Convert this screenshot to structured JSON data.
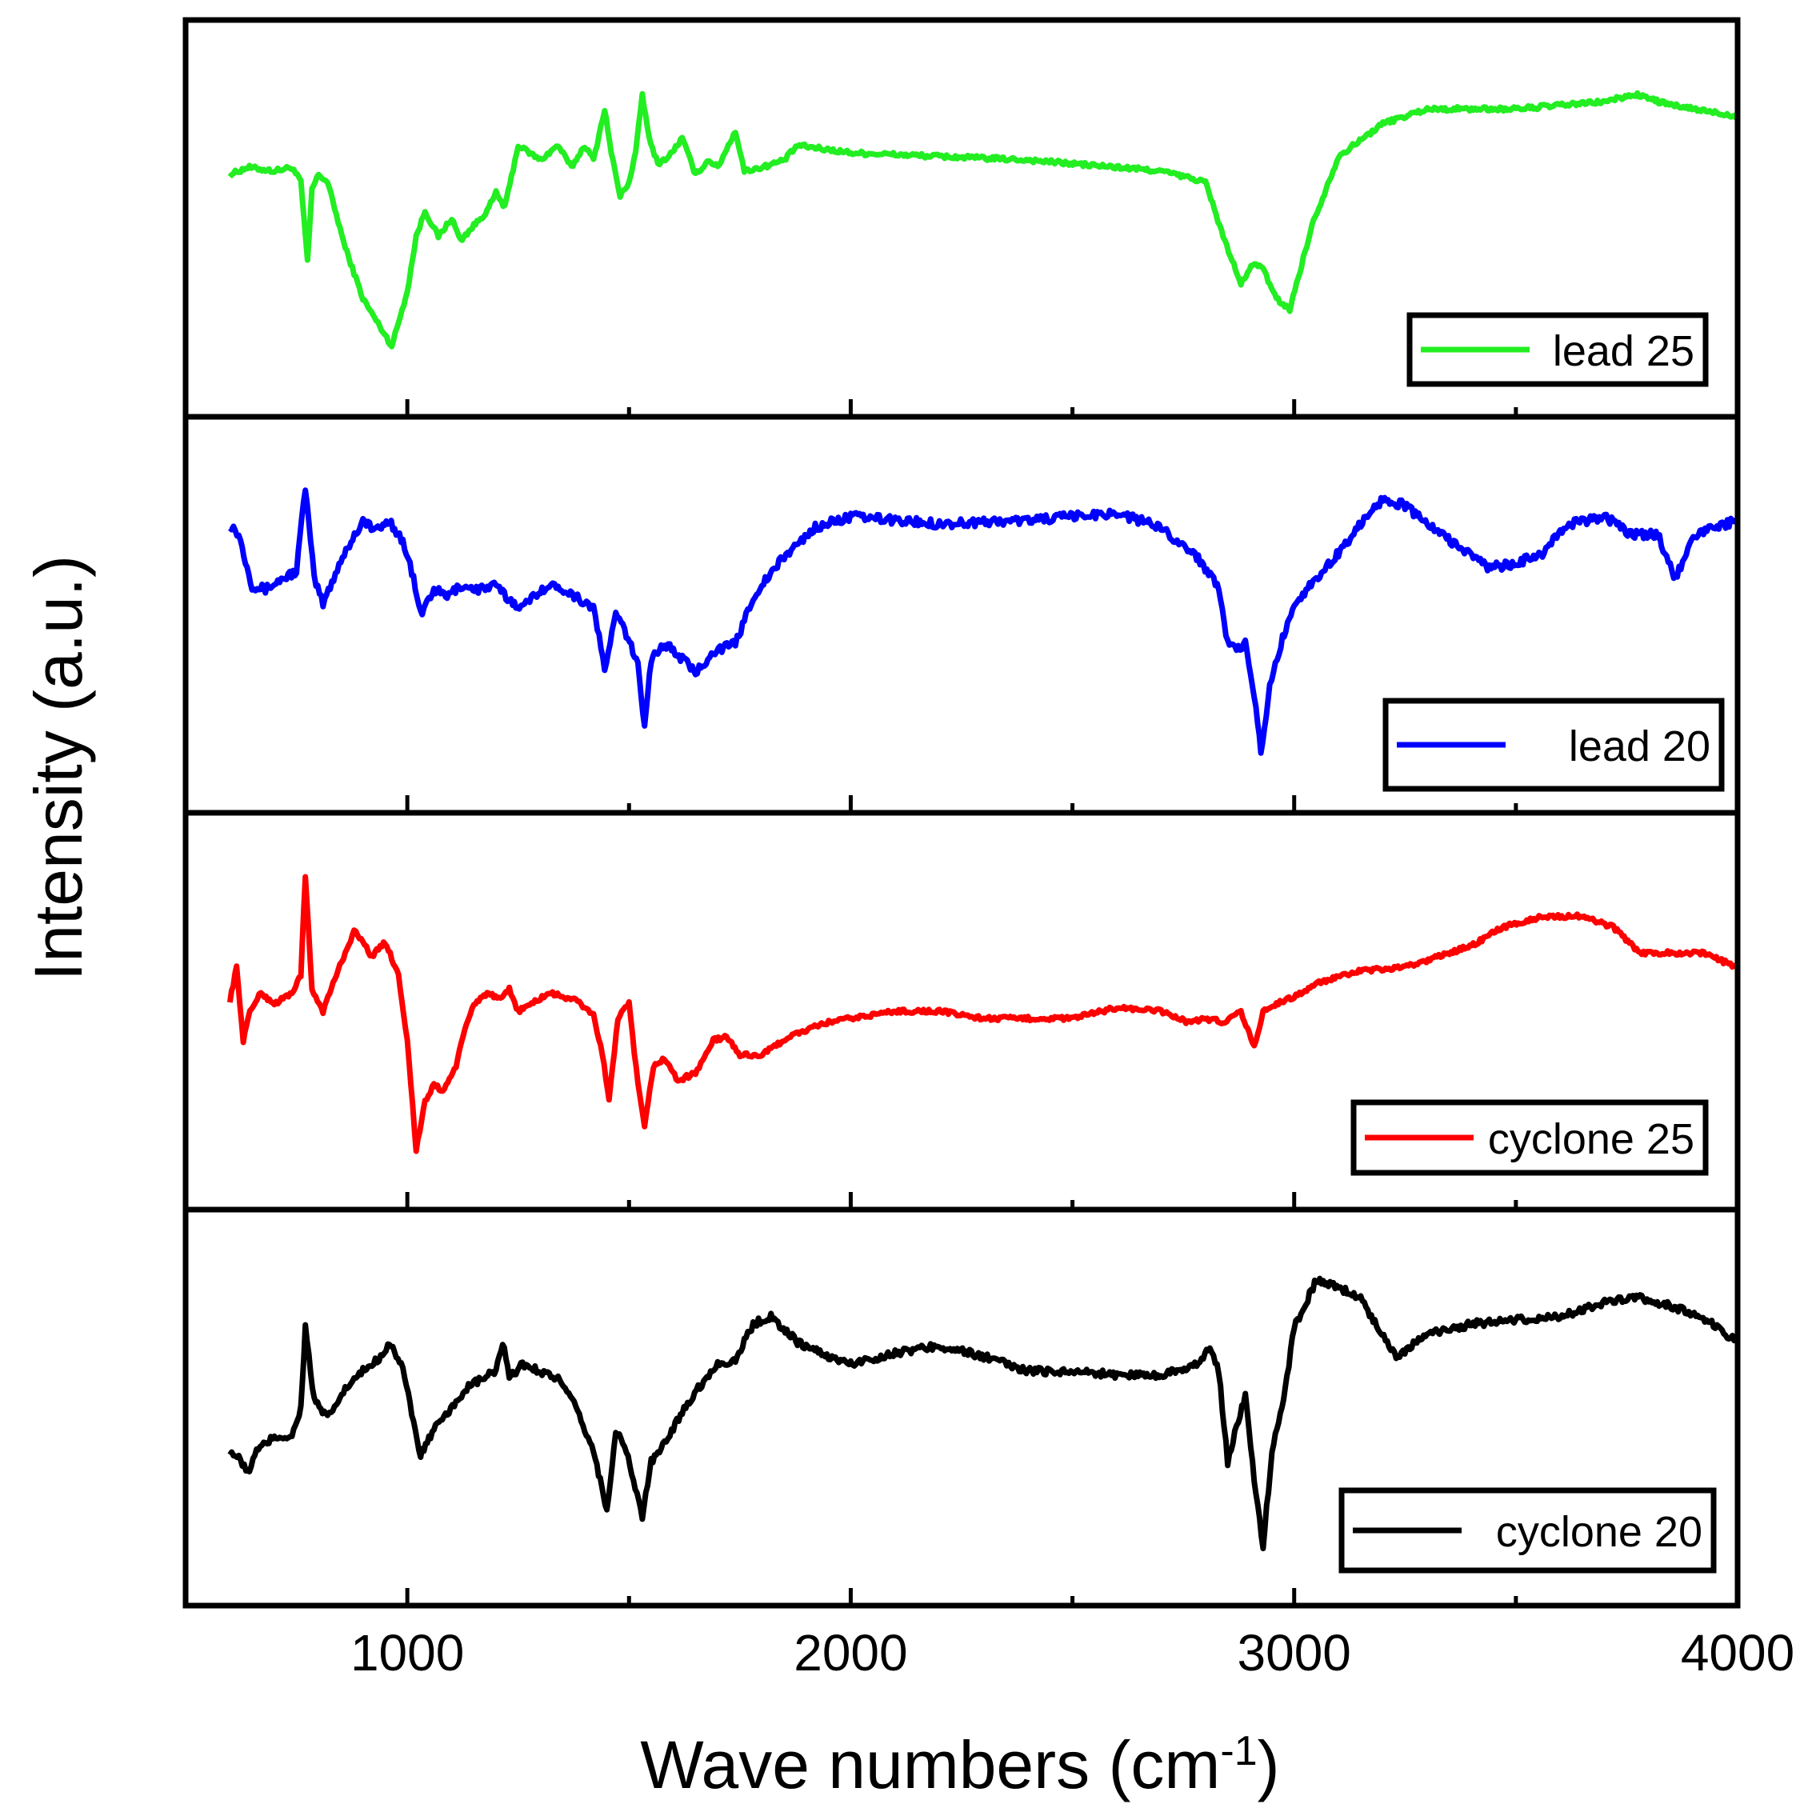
{
  "chart_data": {
    "type": "line",
    "layout": "stacked-panels",
    "xlabel": "Wave numbers (cm",
    "xlabel_superscript": "-1",
    "xlabel_suffix": ")",
    "ylabel": "Intensity (a.u.)",
    "xlim": [
      500,
      4000
    ],
    "xticks": [
      1000,
      2000,
      3000,
      4000
    ],
    "minor_ticks": [
      1500,
      2500,
      3500
    ],
    "ylim": [
      0,
      1
    ],
    "panels": [
      {
        "name": "lead 25",
        "color": "#22ee22",
        "noise": 0.006,
        "points": [
          [
            600,
            0.62
          ],
          [
            640,
            0.64
          ],
          [
            700,
            0.63
          ],
          [
            740,
            0.64
          ],
          [
            760,
            0.6
          ],
          [
            775,
            0.38
          ],
          [
            785,
            0.58
          ],
          [
            800,
            0.62
          ],
          [
            820,
            0.6
          ],
          [
            860,
            0.42
          ],
          [
            900,
            0.28
          ],
          [
            930,
            0.22
          ],
          [
            965,
            0.15
          ],
          [
            1000,
            0.3
          ],
          [
            1020,
            0.45
          ],
          [
            1040,
            0.52
          ],
          [
            1070,
            0.45
          ],
          [
            1100,
            0.5
          ],
          [
            1120,
            0.44
          ],
          [
            1150,
            0.48
          ],
          [
            1180,
            0.52
          ],
          [
            1200,
            0.57
          ],
          [
            1220,
            0.53
          ],
          [
            1250,
            0.7
          ],
          [
            1275,
            0.68
          ],
          [
            1300,
            0.66
          ],
          [
            1340,
            0.7
          ],
          [
            1370,
            0.64
          ],
          [
            1400,
            0.7
          ],
          [
            1420,
            0.66
          ],
          [
            1445,
            0.8
          ],
          [
            1460,
            0.68
          ],
          [
            1480,
            0.56
          ],
          [
            1500,
            0.6
          ],
          [
            1515,
            0.68
          ],
          [
            1530,
            0.84
          ],
          [
            1545,
            0.72
          ],
          [
            1565,
            0.65
          ],
          [
            1590,
            0.67
          ],
          [
            1620,
            0.72
          ],
          [
            1650,
            0.62
          ],
          [
            1680,
            0.66
          ],
          [
            1700,
            0.64
          ],
          [
            1740,
            0.74
          ],
          [
            1760,
            0.63
          ],
          [
            1800,
            0.64
          ],
          [
            1850,
            0.66
          ],
          [
            1880,
            0.7
          ],
          [
            2000,
            0.68
          ],
          [
            2400,
            0.66
          ],
          [
            2700,
            0.63
          ],
          [
            2800,
            0.6
          ],
          [
            2840,
            0.45
          ],
          [
            2880,
            0.32
          ],
          [
            2910,
            0.38
          ],
          [
            2930,
            0.36
          ],
          [
            2960,
            0.28
          ],
          [
            2990,
            0.25
          ],
          [
            3040,
            0.48
          ],
          [
            3100,
            0.67
          ],
          [
            3200,
            0.76
          ],
          [
            3300,
            0.8
          ],
          [
            3500,
            0.8
          ],
          [
            3700,
            0.82
          ],
          [
            3770,
            0.84
          ],
          [
            3850,
            0.81
          ],
          [
            4000,
            0.78
          ]
        ]
      },
      {
        "name": "lead 20",
        "color": "#0000ff",
        "noise": 0.012,
        "points": [
          [
            600,
            0.75
          ],
          [
            620,
            0.72
          ],
          [
            650,
            0.58
          ],
          [
            680,
            0.57
          ],
          [
            720,
            0.6
          ],
          [
            750,
            0.62
          ],
          [
            770,
            0.85
          ],
          [
            790,
            0.6
          ],
          [
            810,
            0.53
          ],
          [
            850,
            0.65
          ],
          [
            900,
            0.76
          ],
          [
            930,
            0.73
          ],
          [
            960,
            0.76
          ],
          [
            990,
            0.7
          ],
          [
            1010,
            0.62
          ],
          [
            1030,
            0.5
          ],
          [
            1060,
            0.57
          ],
          [
            1090,
            0.55
          ],
          [
            1120,
            0.58
          ],
          [
            1160,
            0.57
          ],
          [
            1200,
            0.58
          ],
          [
            1230,
            0.54
          ],
          [
            1260,
            0.52
          ],
          [
            1300,
            0.57
          ],
          [
            1340,
            0.58
          ],
          [
            1380,
            0.55
          ],
          [
            1420,
            0.52
          ],
          [
            1445,
            0.35
          ],
          [
            1470,
            0.5
          ],
          [
            1490,
            0.46
          ],
          [
            1520,
            0.36
          ],
          [
            1535,
            0.2
          ],
          [
            1550,
            0.38
          ],
          [
            1580,
            0.42
          ],
          [
            1620,
            0.38
          ],
          [
            1650,
            0.34
          ],
          [
            1690,
            0.4
          ],
          [
            1740,
            0.42
          ],
          [
            1780,
            0.55
          ],
          [
            1850,
            0.66
          ],
          [
            1920,
            0.74
          ],
          [
            2000,
            0.77
          ],
          [
            2100,
            0.76
          ],
          [
            2200,
            0.75
          ],
          [
            2400,
            0.76
          ],
          [
            2600,
            0.78
          ],
          [
            2700,
            0.74
          ],
          [
            2780,
            0.66
          ],
          [
            2830,
            0.58
          ],
          [
            2850,
            0.42
          ],
          [
            2870,
            0.4
          ],
          [
            2890,
            0.42
          ],
          [
            2910,
            0.28
          ],
          [
            2925,
            0.12
          ],
          [
            2945,
            0.3
          ],
          [
            2970,
            0.42
          ],
          [
            3000,
            0.53
          ],
          [
            3050,
            0.6
          ],
          [
            3100,
            0.67
          ],
          [
            3150,
            0.75
          ],
          [
            3200,
            0.82
          ],
          [
            3250,
            0.8
          ],
          [
            3300,
            0.75
          ],
          [
            3380,
            0.68
          ],
          [
            3440,
            0.63
          ],
          [
            3500,
            0.64
          ],
          [
            3560,
            0.67
          ],
          [
            3620,
            0.75
          ],
          [
            3700,
            0.77
          ],
          [
            3760,
            0.72
          ],
          [
            3820,
            0.72
          ],
          [
            3860,
            0.6
          ],
          [
            3900,
            0.72
          ],
          [
            3950,
            0.74
          ],
          [
            4000,
            0.76
          ]
        ]
      },
      {
        "name": "cyclone 25",
        "color": "#ff0000",
        "noise": 0.006,
        "points": [
          [
            600,
            0.53
          ],
          [
            615,
            0.62
          ],
          [
            630,
            0.42
          ],
          [
            645,
            0.5
          ],
          [
            670,
            0.55
          ],
          [
            700,
            0.52
          ],
          [
            740,
            0.55
          ],
          [
            760,
            0.6
          ],
          [
            770,
            0.87
          ],
          [
            785,
            0.56
          ],
          [
            810,
            0.5
          ],
          [
            840,
            0.6
          ],
          [
            880,
            0.72
          ],
          [
            900,
            0.69
          ],
          [
            920,
            0.65
          ],
          [
            950,
            0.69
          ],
          [
            980,
            0.6
          ],
          [
            1000,
            0.42
          ],
          [
            1020,
            0.12
          ],
          [
            1040,
            0.25
          ],
          [
            1060,
            0.3
          ],
          [
            1080,
            0.28
          ],
          [
            1110,
            0.35
          ],
          [
            1130,
            0.45
          ],
          [
            1150,
            0.52
          ],
          [
            1180,
            0.55
          ],
          [
            1210,
            0.53
          ],
          [
            1230,
            0.56
          ],
          [
            1250,
            0.5
          ],
          [
            1280,
            0.52
          ],
          [
            1320,
            0.55
          ],
          [
            1350,
            0.54
          ],
          [
            1380,
            0.53
          ],
          [
            1420,
            0.49
          ],
          [
            1440,
            0.38
          ],
          [
            1455,
            0.26
          ],
          [
            1475,
            0.48
          ],
          [
            1500,
            0.52
          ],
          [
            1520,
            0.3
          ],
          [
            1535,
            0.18
          ],
          [
            1555,
            0.35
          ],
          [
            1580,
            0.37
          ],
          [
            1610,
            0.31
          ],
          [
            1650,
            0.33
          ],
          [
            1690,
            0.42
          ],
          [
            1720,
            0.43
          ],
          [
            1750,
            0.38
          ],
          [
            1800,
            0.38
          ],
          [
            1860,
            0.43
          ],
          [
            1950,
            0.47
          ],
          [
            2100,
            0.5
          ],
          [
            2200,
            0.5
          ],
          [
            2300,
            0.48
          ],
          [
            2400,
            0.48
          ],
          [
            2500,
            0.48
          ],
          [
            2600,
            0.51
          ],
          [
            2700,
            0.5
          ],
          [
            2760,
            0.47
          ],
          [
            2800,
            0.48
          ],
          [
            2840,
            0.47
          ],
          [
            2880,
            0.5
          ],
          [
            2910,
            0.4
          ],
          [
            2930,
            0.5
          ],
          [
            2960,
            0.52
          ],
          [
            3000,
            0.54
          ],
          [
            3060,
            0.58
          ],
          [
            3150,
            0.61
          ],
          [
            3250,
            0.62
          ],
          [
            3350,
            0.66
          ],
          [
            3400,
            0.68
          ],
          [
            3470,
            0.73
          ],
          [
            3560,
            0.76
          ],
          [
            3650,
            0.76
          ],
          [
            3720,
            0.73
          ],
          [
            3780,
            0.66
          ],
          [
            3850,
            0.66
          ],
          [
            3920,
            0.66
          ],
          [
            4000,
            0.62
          ]
        ]
      },
      {
        "name": "cyclone 20",
        "color": "#000000",
        "noise": 0.01,
        "points": [
          [
            600,
            0.38
          ],
          [
            620,
            0.36
          ],
          [
            640,
            0.32
          ],
          [
            660,
            0.38
          ],
          [
            700,
            0.42
          ],
          [
            740,
            0.42
          ],
          [
            760,
            0.5
          ],
          [
            770,
            0.72
          ],
          [
            790,
            0.52
          ],
          [
            820,
            0.47
          ],
          [
            860,
            0.55
          ],
          [
            900,
            0.6
          ],
          [
            940,
            0.64
          ],
          [
            960,
            0.68
          ],
          [
            990,
            0.61
          ],
          [
            1010,
            0.48
          ],
          [
            1030,
            0.37
          ],
          [
            1060,
            0.44
          ],
          [
            1090,
            0.48
          ],
          [
            1130,
            0.55
          ],
          [
            1170,
            0.58
          ],
          [
            1200,
            0.6
          ],
          [
            1215,
            0.68
          ],
          [
            1230,
            0.58
          ],
          [
            1260,
            0.62
          ],
          [
            1300,
            0.6
          ],
          [
            1340,
            0.58
          ],
          [
            1380,
            0.5
          ],
          [
            1420,
            0.38
          ],
          [
            1450,
            0.22
          ],
          [
            1470,
            0.43
          ],
          [
            1490,
            0.4
          ],
          [
            1510,
            0.3
          ],
          [
            1530,
            0.2
          ],
          [
            1550,
            0.35
          ],
          [
            1580,
            0.4
          ],
          [
            1620,
            0.49
          ],
          [
            1660,
            0.56
          ],
          [
            1700,
            0.62
          ],
          [
            1740,
            0.63
          ],
          [
            1780,
            0.73
          ],
          [
            1820,
            0.75
          ],
          [
            1880,
            0.68
          ],
          [
            1950,
            0.64
          ],
          [
            2000,
            0.62
          ],
          [
            2100,
            0.65
          ],
          [
            2200,
            0.67
          ],
          [
            2300,
            0.64
          ],
          [
            2400,
            0.6
          ],
          [
            2500,
            0.6
          ],
          [
            2600,
            0.59
          ],
          [
            2700,
            0.59
          ],
          [
            2780,
            0.62
          ],
          [
            2810,
            0.66
          ],
          [
            2830,
            0.6
          ],
          [
            2850,
            0.35
          ],
          [
            2870,
            0.45
          ],
          [
            2890,
            0.53
          ],
          [
            2910,
            0.3
          ],
          [
            2930,
            0.12
          ],
          [
            2950,
            0.38
          ],
          [
            2980,
            0.55
          ],
          [
            3000,
            0.72
          ],
          [
            3050,
            0.85
          ],
          [
            3100,
            0.83
          ],
          [
            3150,
            0.8
          ],
          [
            3190,
            0.72
          ],
          [
            3230,
            0.64
          ],
          [
            3300,
            0.7
          ],
          [
            3400,
            0.73
          ],
          [
            3500,
            0.74
          ],
          [
            3600,
            0.75
          ],
          [
            3700,
            0.79
          ],
          [
            3780,
            0.8
          ],
          [
            3850,
            0.78
          ],
          [
            3930,
            0.74
          ],
          [
            4000,
            0.68
          ]
        ]
      }
    ]
  }
}
